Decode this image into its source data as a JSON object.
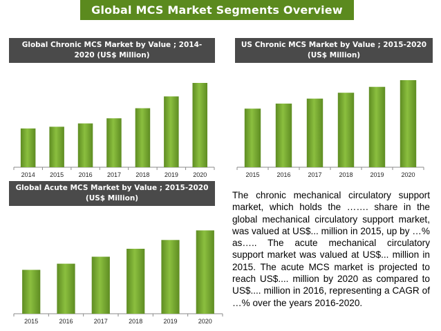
{
  "page": {
    "title": "Global MCS Market Segments Overview",
    "paragraph": "The chronic mechanical circulatory support market, which holds the ……. share in the global mechanical circulatory support market, was valued at US$... million in 2015, up by …% as….. The acute mechanical circulatory support market was valued at US$... million in 2015. The acute MCS market is projected to reach US$.... million by 2020 as compared to US$.... million in 2016, representing a CAGR of …% over the years 2016-2020."
  },
  "colors": {
    "title_bg": "#5b8a1e",
    "header_bg": "#4a4a4a",
    "bar_light": "#8bbf3f",
    "bar_dark": "#5e8c22"
  },
  "chart_data": [
    {
      "type": "bar",
      "title": "Global Chronic MCS Market by Value ; 2014-2020 (US$ Million)",
      "categories": [
        "2014",
        "2015",
        "2016",
        "2017",
        "2018",
        "2019",
        "2020"
      ],
      "values": [
        46,
        48,
        52,
        58,
        70,
        84,
        100
      ],
      "ylim": [
        0,
        100
      ],
      "grid": false,
      "legend": "none"
    },
    {
      "type": "bar",
      "title": "US Chronic MCS Market by Value ; 2015-2020 (US$ Million)",
      "categories": [
        "2015",
        "2016",
        "2017",
        "2018",
        "2019",
        "2020"
      ],
      "values": [
        70,
        76,
        82,
        89,
        96,
        104
      ],
      "ylim": [
        0,
        104
      ],
      "grid": false,
      "legend": "none"
    },
    {
      "type": "bar",
      "title": "Global Acute MCS Market by Value ; 2015-2020 (US$ Million)",
      "categories": [
        "2015",
        "2016",
        "2017",
        "2018",
        "2019",
        "2020"
      ],
      "values": [
        50,
        57,
        65,
        74,
        84,
        95
      ],
      "ylim": [
        0,
        100
      ],
      "grid": false,
      "legend": "none"
    }
  ]
}
